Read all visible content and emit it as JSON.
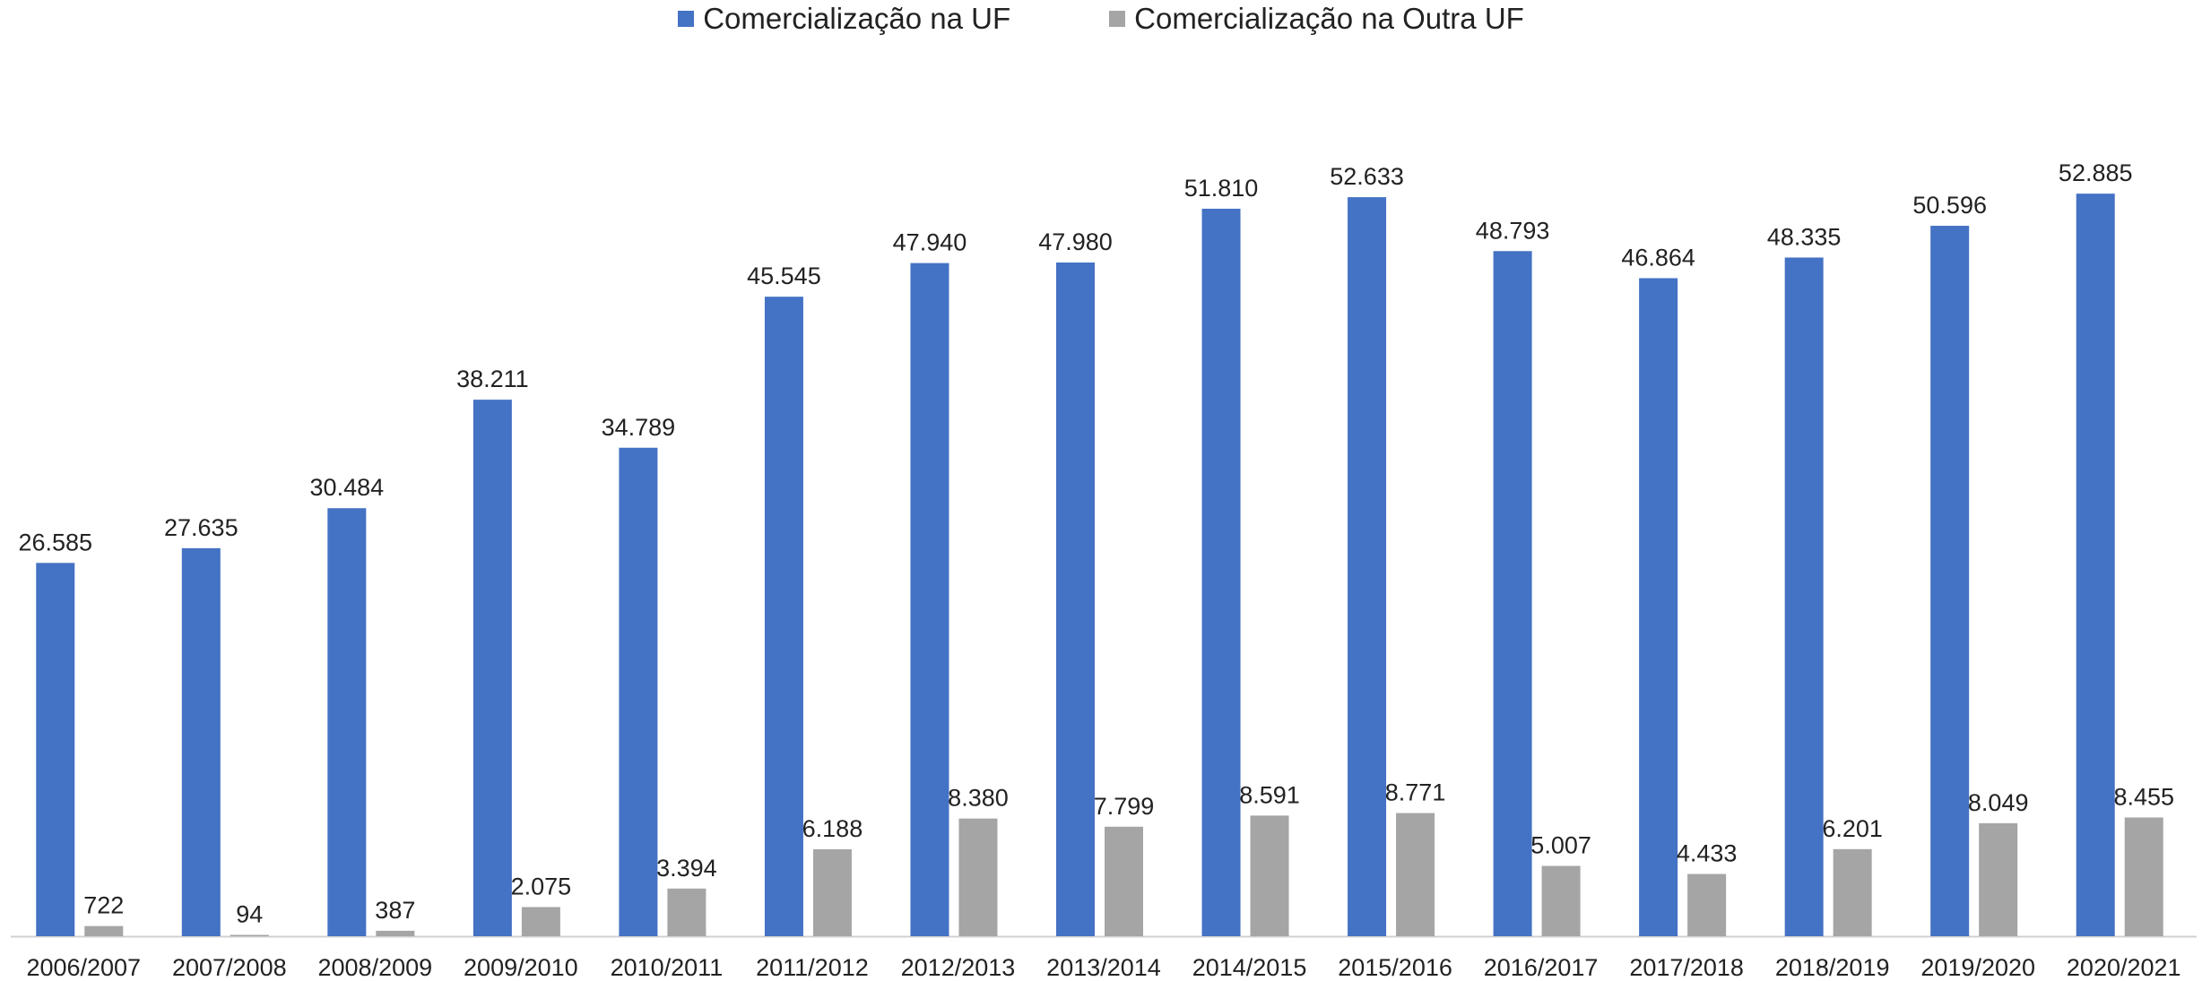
{
  "chart_data": {
    "type": "bar",
    "title": "",
    "xlabel": "",
    "ylabel": "",
    "ylim": [
      0,
      55000
    ],
    "grid": false,
    "legend_position": "top-center",
    "categories": [
      "2006/2007",
      "2007/2008",
      "2008/2009",
      "2009/2010",
      "2010/2011",
      "2011/2012",
      "2012/2013",
      "2013/2014",
      "2014/2015",
      "2015/2016",
      "2016/2017",
      "2017/2018",
      "2018/2019",
      "2019/2020",
      "2020/2021"
    ],
    "series": [
      {
        "name": "Comercialização na UF",
        "color": "#4472C4",
        "values": [
          26585,
          27635,
          30484,
          38211,
          34789,
          45545,
          47940,
          47980,
          51810,
          52633,
          48793,
          46864,
          48335,
          50596,
          52885
        ],
        "labels": [
          "26.585",
          "27.635",
          "30.484",
          "38.211",
          "34.789",
          "45.545",
          "47.940",
          "47.980",
          "51.810",
          "52.633",
          "48.793",
          "46.864",
          "48.335",
          "50.596",
          "52.885"
        ]
      },
      {
        "name": "Comercialização na Outra UF",
        "color": "#A5A5A5",
        "values": [
          722,
          94,
          387,
          2075,
          3394,
          6188,
          8380,
          7799,
          8591,
          8771,
          5007,
          4433,
          6201,
          8049,
          8455
        ],
        "labels": [
          "722",
          "94",
          "387",
          "2.075",
          "3.394",
          "6.188",
          "8.380",
          "7.799",
          "8.591",
          "8.771",
          "5.007",
          "4.433",
          "6.201",
          "8.049",
          "8.455"
        ]
      }
    ]
  }
}
